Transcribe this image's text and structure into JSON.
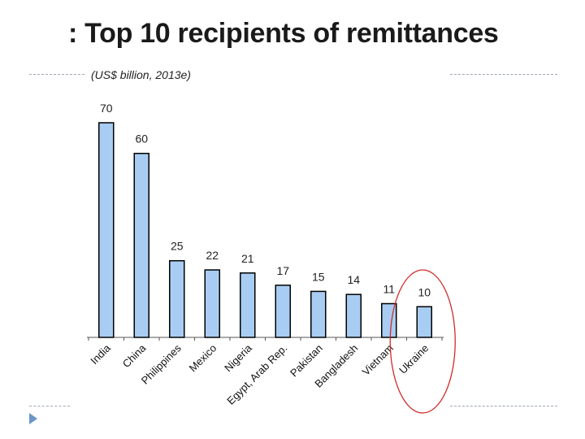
{
  "header": {
    "title": ": Top 10 recipients of remittances",
    "subtitle": "(US$ billion, 2013e)"
  },
  "chart_data": {
    "type": "bar",
    "title": "Top 10 recipients of remittances",
    "subtitle": "(US$ billion, 2013e)",
    "categories": [
      "India",
      "China",
      "Philippines",
      "Mexico",
      "Nigeria",
      "Egypt, Arab Rep.",
      "Pakistan",
      "Bangladesh",
      "Vietnam",
      "Ukraine"
    ],
    "values": [
      70,
      60,
      25,
      22,
      21,
      17,
      15,
      14,
      11,
      10
    ],
    "xlabel": "",
    "ylabel": "US$ billion",
    "ylim": [
      0,
      70
    ],
    "highlighted_category": "Ukraine",
    "colors": {
      "bar_fill": "#a9cdf2",
      "bar_stroke": "#000000",
      "highlight_ellipse": "#d22a2a"
    }
  }
}
